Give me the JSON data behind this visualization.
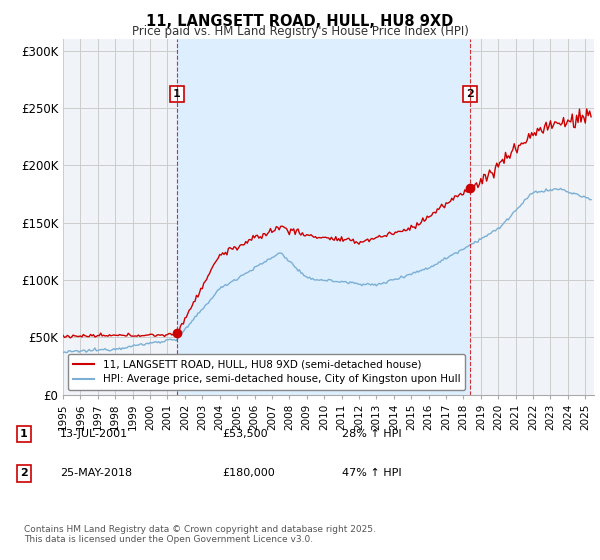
{
  "title": "11, LANGSETT ROAD, HULL, HU8 9XD",
  "subtitle": "Price paid vs. HM Land Registry's House Price Index (HPI)",
  "ylabel_ticks": [
    "£0",
    "£50K",
    "£100K",
    "£150K",
    "£200K",
    "£250K",
    "£300K"
  ],
  "ytick_values": [
    0,
    50000,
    100000,
    150000,
    200000,
    250000,
    300000
  ],
  "ylim": [
    0,
    310000
  ],
  "xlim_start": 1995.0,
  "xlim_end": 2025.5,
  "red_color": "#cc0000",
  "blue_color": "#7bafd4",
  "shade_color": "#ddeeff",
  "background_color": "#f0f4f8",
  "grid_color": "#cccccc",
  "vline1_x": 2001.54,
  "vline2_x": 2018.38,
  "sale1_x": 2001.54,
  "sale1_y": 53500,
  "sale2_x": 2018.38,
  "sale2_y": 180000,
  "legend_red_label": "11, LANGSETT ROAD, HULL, HU8 9XD (semi-detached house)",
  "legend_blue_label": "HPI: Average price, semi-detached house, City of Kingston upon Hull",
  "note1_label": "1",
  "note1_date": "13-JUL-2001",
  "note1_price": "£53,500",
  "note1_pct": "28% ↑ HPI",
  "note2_label": "2",
  "note2_date": "25-MAY-2018",
  "note2_price": "£180,000",
  "note2_pct": "47% ↑ HPI",
  "copyright_text": "Contains HM Land Registry data © Crown copyright and database right 2025.\nThis data is licensed under the Open Government Licence v3.0."
}
